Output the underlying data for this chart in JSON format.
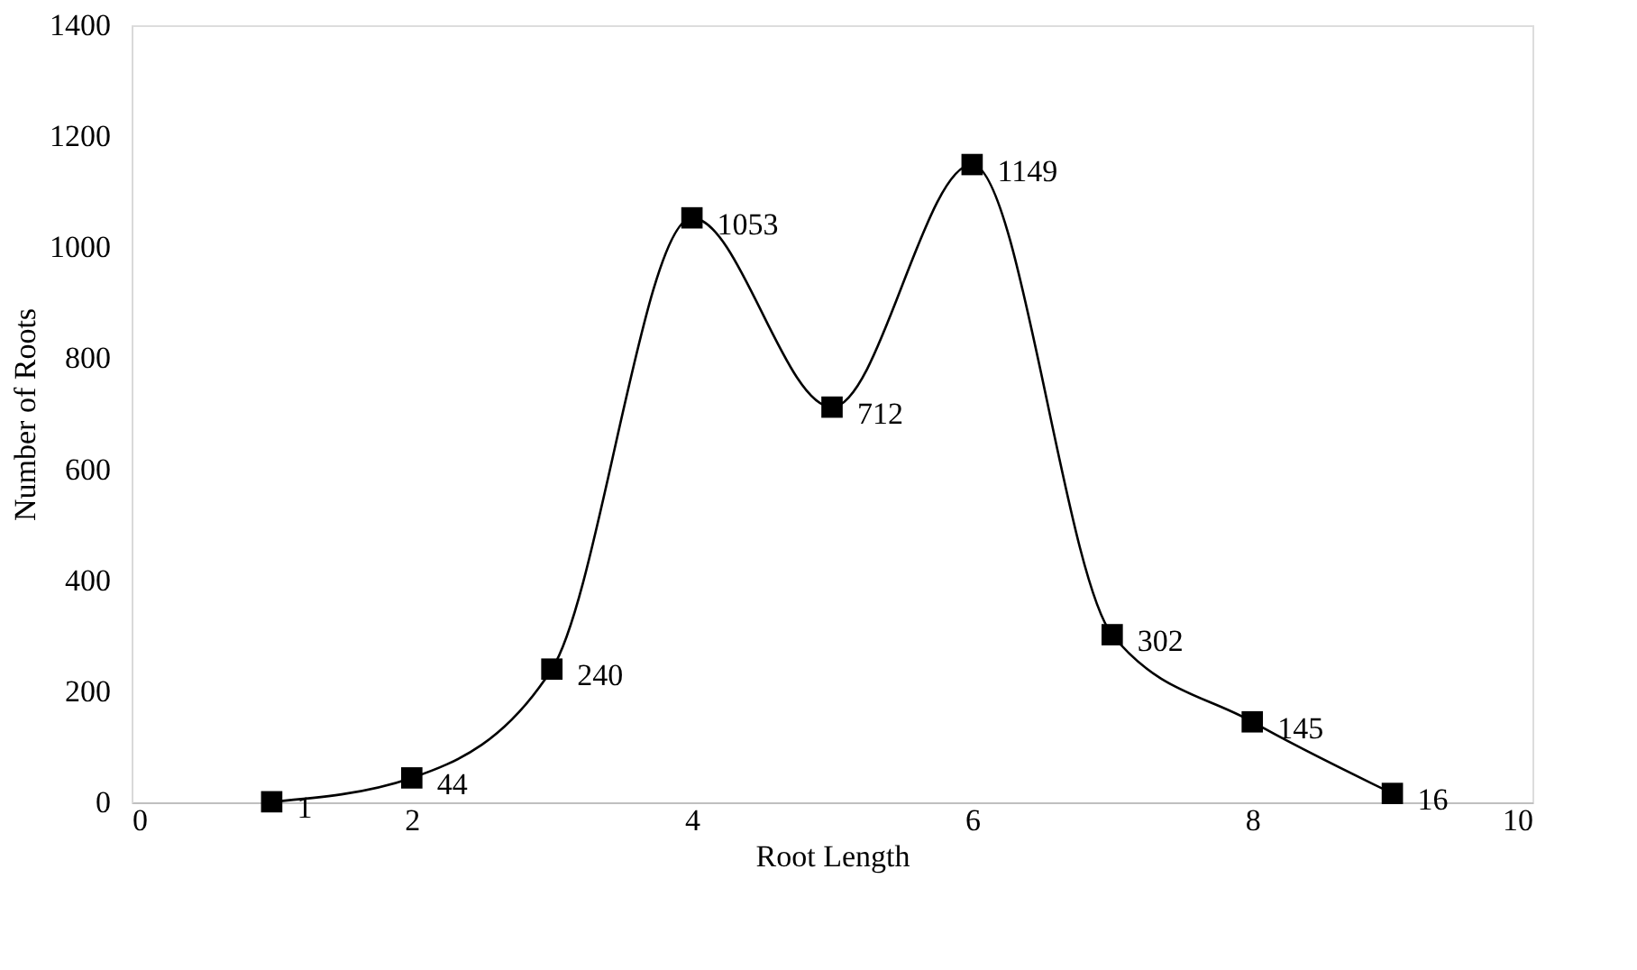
{
  "chart_data": {
    "type": "line",
    "xlabel": "Root Length",
    "ylabel": "Number of Roots",
    "x": [
      1,
      2,
      3,
      4,
      5,
      6,
      7,
      8,
      9
    ],
    "values": [
      1,
      44,
      240,
      1053,
      712,
      1149,
      302,
      145,
      16
    ],
    "color": "#000000",
    "marker": "square",
    "data_labels": true,
    "xlim": [
      0,
      10
    ],
    "xticks": [
      0,
      2,
      4,
      6,
      8,
      10
    ],
    "ylim": [
      0,
      1400
    ],
    "yticks": [
      0,
      200,
      400,
      600,
      800,
      1000,
      1200,
      1400
    ]
  }
}
